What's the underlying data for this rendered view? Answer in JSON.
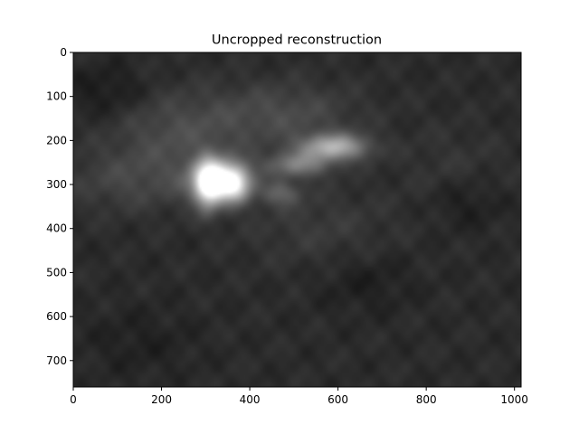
{
  "chart_data": {
    "type": "heatmap",
    "title": "Uncropped reconstruction",
    "colormap": "gray",
    "xlim": [
      0,
      1015
    ],
    "ylim": [
      760,
      0
    ],
    "x_ticks": [
      0,
      200,
      400,
      600,
      800,
      1000
    ],
    "y_ticks": [
      0,
      100,
      200,
      300,
      400,
      500,
      600,
      700
    ],
    "x_tick_labels": [
      "0",
      "200",
      "400",
      "600",
      "800",
      "1000"
    ],
    "y_tick_labels": [
      "0",
      "100",
      "200",
      "300",
      "400",
      "500",
      "600",
      "700"
    ],
    "background_level": 0.17,
    "bright_regions": [
      {
        "cx": 240,
        "cy": 180,
        "rx": 150,
        "ry": 90,
        "intensity": 0.12
      },
      {
        "cx": 480,
        "cy": 140,
        "rx": 160,
        "ry": 70,
        "intensity": 0.12
      },
      {
        "cx": 330,
        "cy": 290,
        "rx": 60,
        "ry": 45,
        "intensity": 0.7
      },
      {
        "cx": 305,
        "cy": 300,
        "rx": 28,
        "ry": 55,
        "intensity": 0.55
      },
      {
        "cx": 365,
        "cy": 300,
        "rx": 35,
        "ry": 40,
        "intensity": 0.45
      },
      {
        "cx": 590,
        "cy": 215,
        "rx": 75,
        "ry": 30,
        "intensity": 0.5
      },
      {
        "cx": 510,
        "cy": 255,
        "rx": 70,
        "ry": 28,
        "intensity": 0.3
      },
      {
        "cx": 470,
        "cy": 320,
        "rx": 45,
        "ry": 28,
        "intensity": 0.2
      },
      {
        "cx": 140,
        "cy": 290,
        "rx": 160,
        "ry": 70,
        "intensity": 0.1
      },
      {
        "cx": 560,
        "cy": 400,
        "rx": 160,
        "ry": 90,
        "intensity": 0.06
      },
      {
        "cx": 860,
        "cy": 260,
        "rx": 120,
        "ry": 90,
        "intensity": 0.04
      }
    ],
    "dark_regions": [
      {
        "cx": 80,
        "cy": 90,
        "rx": 90,
        "ry": 60,
        "intensity": 0.07
      },
      {
        "cx": 890,
        "cy": 340,
        "rx": 80,
        "ry": 60,
        "intensity": 0.06
      },
      {
        "cx": 660,
        "cy": 520,
        "rx": 110,
        "ry": 70,
        "intensity": 0.05
      },
      {
        "cx": 150,
        "cy": 660,
        "rx": 130,
        "ry": 80,
        "intensity": 0.04
      }
    ]
  }
}
